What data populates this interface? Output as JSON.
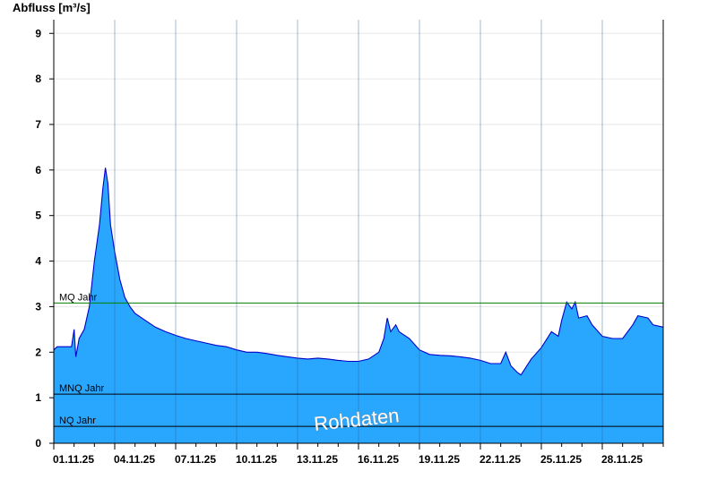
{
  "chart_data": {
    "type": "area",
    "ylabel": "Abfluss [m³/s]",
    "ylim": [
      0,
      9.3
    ],
    "yticks": [
      "0",
      "1",
      "2",
      "3",
      "4",
      "5",
      "6",
      "7",
      "8",
      "9"
    ],
    "xlim": [
      "2025-11-01T00:00",
      "2025-11-30T24:00"
    ],
    "xtick_labels": [
      "01.11.25",
      "04.11.25",
      "07.11.25",
      "10.11.25",
      "13.11.25",
      "16.11.25",
      "19.11.25",
      "22.11.25",
      "25.11.25",
      "28.11.25"
    ],
    "grid": true,
    "reference_lines": [
      {
        "name": "MQ Jahr",
        "value": 3.08,
        "color": "#008000"
      },
      {
        "name": "MNQ Jahr",
        "value": 1.08,
        "color": "#000000"
      },
      {
        "name": "NQ Jahr",
        "value": 0.37,
        "color": "#000000"
      }
    ],
    "annotation": "Rohdaten",
    "series": [
      {
        "fill_color": "#29A7FF",
        "line_color": "#0000CC",
        "points": [
          [
            "2025-11-01T00:00",
            2.05
          ],
          [
            "2025-11-01T04:00",
            2.12
          ],
          [
            "2025-11-01T12:00",
            2.12
          ],
          [
            "2025-11-01T21:00",
            2.12
          ],
          [
            "2025-11-02T00:00",
            2.5
          ],
          [
            "2025-11-02T02:00",
            1.9
          ],
          [
            "2025-11-02T06:00",
            2.3
          ],
          [
            "2025-11-02T12:00",
            2.5
          ],
          [
            "2025-11-02T18:00",
            3.0
          ],
          [
            "2025-11-03T00:00",
            4.0
          ],
          [
            "2025-11-03T06:00",
            4.8
          ],
          [
            "2025-11-03T10:00",
            5.6
          ],
          [
            "2025-11-03T13:00",
            6.05
          ],
          [
            "2025-11-03T16:00",
            5.7
          ],
          [
            "2025-11-03T19:00",
            4.8
          ],
          [
            "2025-11-04T00:00",
            4.2
          ],
          [
            "2025-11-04T06:00",
            3.6
          ],
          [
            "2025-11-04T12:00",
            3.2
          ],
          [
            "2025-11-04T18:00",
            3.0
          ],
          [
            "2025-11-05T00:00",
            2.85
          ],
          [
            "2025-11-05T12:00",
            2.7
          ],
          [
            "2025-11-06T00:00",
            2.55
          ],
          [
            "2025-11-06T12:00",
            2.45
          ],
          [
            "2025-11-07T00:00",
            2.37
          ],
          [
            "2025-11-07T12:00",
            2.3
          ],
          [
            "2025-11-08T00:00",
            2.25
          ],
          [
            "2025-11-08T12:00",
            2.2
          ],
          [
            "2025-11-09T00:00",
            2.15
          ],
          [
            "2025-11-09T12:00",
            2.12
          ],
          [
            "2025-11-10T00:00",
            2.05
          ],
          [
            "2025-11-10T12:00",
            2.0
          ],
          [
            "2025-11-11T00:00",
            2.0
          ],
          [
            "2025-11-11T12:00",
            1.97
          ],
          [
            "2025-11-12T00:00",
            1.93
          ],
          [
            "2025-11-12T12:00",
            1.9
          ],
          [
            "2025-11-13T00:00",
            1.87
          ],
          [
            "2025-11-13T12:00",
            1.85
          ],
          [
            "2025-11-14T00:00",
            1.87
          ],
          [
            "2025-11-14T12:00",
            1.85
          ],
          [
            "2025-11-15T00:00",
            1.82
          ],
          [
            "2025-11-15T12:00",
            1.8
          ],
          [
            "2025-11-16T00:00",
            1.8
          ],
          [
            "2025-11-16T12:00",
            1.85
          ],
          [
            "2025-11-17T00:00",
            2.0
          ],
          [
            "2025-11-17T06:00",
            2.3
          ],
          [
            "2025-11-17T10:00",
            2.75
          ],
          [
            "2025-11-17T14:00",
            2.45
          ],
          [
            "2025-11-17T20:00",
            2.6
          ],
          [
            "2025-11-18T00:00",
            2.45
          ],
          [
            "2025-11-18T12:00",
            2.3
          ],
          [
            "2025-11-19T00:00",
            2.05
          ],
          [
            "2025-11-19T12:00",
            1.95
          ],
          [
            "2025-11-20T00:00",
            1.93
          ],
          [
            "2025-11-20T12:00",
            1.92
          ],
          [
            "2025-11-21T00:00",
            1.9
          ],
          [
            "2025-11-21T12:00",
            1.87
          ],
          [
            "2025-11-22T00:00",
            1.82
          ],
          [
            "2025-11-22T12:00",
            1.75
          ],
          [
            "2025-11-23T00:00",
            1.75
          ],
          [
            "2025-11-23T06:00",
            2.0
          ],
          [
            "2025-11-23T12:00",
            1.7
          ],
          [
            "2025-11-23T20:00",
            1.55
          ],
          [
            "2025-11-24T00:00",
            1.5
          ],
          [
            "2025-11-24T12:00",
            1.85
          ],
          [
            "2025-11-25T00:00",
            2.1
          ],
          [
            "2025-11-25T12:00",
            2.45
          ],
          [
            "2025-11-25T20:00",
            2.35
          ],
          [
            "2025-11-26T00:00",
            2.7
          ],
          [
            "2025-11-26T06:00",
            3.1
          ],
          [
            "2025-11-26T12:00",
            2.95
          ],
          [
            "2025-11-26T16:00",
            3.1
          ],
          [
            "2025-11-26T20:00",
            2.75
          ],
          [
            "2025-11-27T06:00",
            2.8
          ],
          [
            "2025-11-27T12:00",
            2.6
          ],
          [
            "2025-11-28T00:00",
            2.35
          ],
          [
            "2025-11-28T12:00",
            2.3
          ],
          [
            "2025-11-29T00:00",
            2.3
          ],
          [
            "2025-11-29T06:00",
            2.45
          ],
          [
            "2025-11-29T12:00",
            2.6
          ],
          [
            "2025-11-29T18:00",
            2.8
          ],
          [
            "2025-11-30T06:00",
            2.75
          ],
          [
            "2025-11-30T12:00",
            2.6
          ],
          [
            "2025-11-30T24:00",
            2.55
          ]
        ]
      }
    ]
  }
}
